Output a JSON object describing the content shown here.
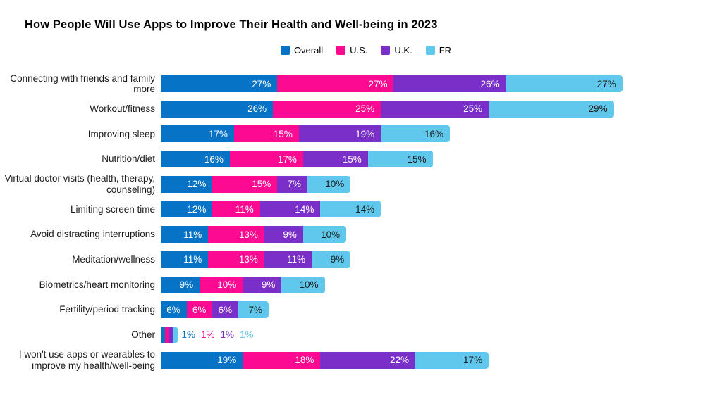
{
  "title": "How People Will Use Apps to Improve Their Health and Well-being in 2023",
  "colors": {
    "overall": "#0673C6",
    "us": "#FC0A92",
    "uk": "#7A2FC8",
    "fr": "#5FC8EC",
    "label_on_dark": "#ffffff",
    "label_on_light": "#1c1c1c",
    "background": "#ffffff"
  },
  "chart_data": {
    "type": "bar",
    "orientation": "horizontal",
    "stacked": true,
    "title": "How People Will Use Apps to Improve Their Health and Well-being in 2023",
    "legend_position": "top",
    "grid": false,
    "value_suffix": "%",
    "categories": [
      "Connecting with friends and family more",
      "Workout/fitness",
      "Improving sleep",
      "Nutrition/diet",
      "Virtual doctor visits (health, therapy, counseling)",
      "Limiting screen time",
      "Avoid distracting interruptions",
      "Meditation/wellness",
      "Biometrics/heart monitoring",
      "Fertility/period tracking",
      "Other",
      "I won't use apps or wearables to improve my health/well-being"
    ],
    "series": [
      {
        "name": "Overall",
        "color": "#0673C6",
        "label_color": "#ffffff",
        "values": [
          27,
          26,
          17,
          16,
          12,
          12,
          11,
          11,
          9,
          6,
          1,
          19
        ]
      },
      {
        "name": "U.S.",
        "color": "#FC0A92",
        "label_color": "#ffffff",
        "values": [
          27,
          25,
          15,
          17,
          15,
          11,
          13,
          13,
          10,
          6,
          1,
          18
        ]
      },
      {
        "name": "U.K.",
        "color": "#7A2FC8",
        "label_color": "#ffffff",
        "values": [
          26,
          25,
          19,
          15,
          7,
          14,
          9,
          11,
          9,
          6,
          1,
          22
        ]
      },
      {
        "name": "FR",
        "color": "#5FC8EC",
        "label_color": "#1c1c1c",
        "values": [
          27,
          29,
          16,
          15,
          10,
          14,
          10,
          9,
          10,
          7,
          1,
          17
        ]
      }
    ],
    "outside_label_rows": [
      "Other"
    ]
  }
}
